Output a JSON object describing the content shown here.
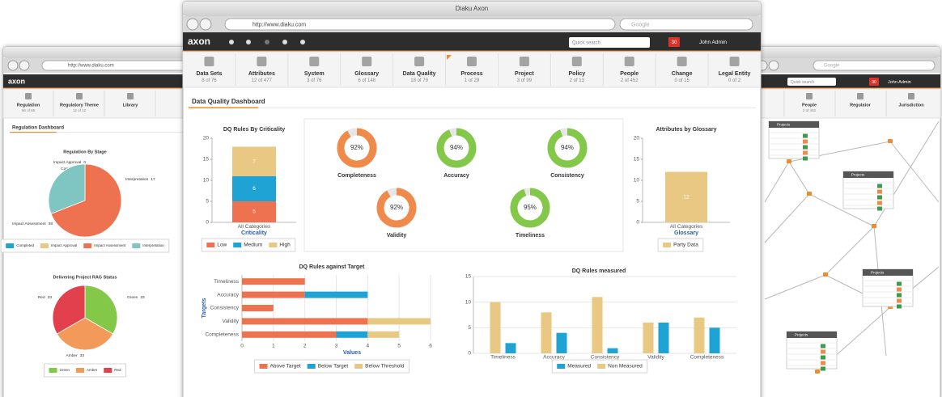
{
  "main_window": {
    "title": "Diaku Axon",
    "url": "http://www.diaku.com",
    "search": "Google",
    "logo": "axon",
    "quick_search": "Quick search",
    "notifications": "30",
    "user": "John Admin"
  },
  "tabs": [
    {
      "label": "Data Sets",
      "count": "8 of 76"
    },
    {
      "label": "Attributes",
      "count": "12 of 477"
    },
    {
      "label": "System",
      "count": "3 of 76"
    },
    {
      "label": "Glossary",
      "count": "6 of 148"
    },
    {
      "label": "Data Quality",
      "count": "18 of 79"
    },
    {
      "label": "Process",
      "count": "1 of 29"
    },
    {
      "label": "Project",
      "count": "3 of 99"
    },
    {
      "label": "Policy",
      "count": "2 of 13"
    },
    {
      "label": "People",
      "count": "2 of 452"
    },
    {
      "label": "Change",
      "count": "0 of 15"
    },
    {
      "label": "Legal Entity",
      "count": "0 of 2"
    }
  ],
  "dashboard_title": "Data Quality Dashboard",
  "chart_data": [
    {
      "type": "bar",
      "stacked": true,
      "title": "DQ Rules By Criticality",
      "categories": [
        "All Categories"
      ],
      "xlabel": "Criticality",
      "series": [
        {
          "name": "Low",
          "color": "#ee7150",
          "values": [
            5
          ]
        },
        {
          "name": "Medium",
          "color": "#1fa3d4",
          "values": [
            6
          ]
        },
        {
          "name": "High",
          "color": "#e8c882",
          "values": [
            7
          ]
        }
      ],
      "ylim": [
        0,
        20
      ],
      "yticks": [
        0,
        5,
        10,
        15,
        20
      ],
      "grid": false
    },
    {
      "type": "donut",
      "categories": [
        "Completeness",
        "Accuracy",
        "Consistency",
        "Validity",
        "Timeliness"
      ],
      "values": [
        92,
        94,
        94,
        92,
        95
      ],
      "value_labels": [
        "92%",
        "94%",
        "94%",
        "92%",
        "95%"
      ],
      "colors": [
        "#f08a4b",
        "#84c84a",
        "#84c84a",
        "#f08a4b",
        "#84c84a"
      ],
      "ylim": [
        0,
        100
      ]
    },
    {
      "type": "bar",
      "stacked": true,
      "title": "Attributes by Glossary",
      "categories": [
        "All Categories"
      ],
      "xlabel": "Glossary",
      "series": [
        {
          "name": "Party Data",
          "color": "#e8c882",
          "values": [
            12
          ]
        }
      ],
      "ylim": [
        0,
        20
      ],
      "yticks": [
        0,
        5,
        10,
        15,
        20
      ],
      "grid": false
    },
    {
      "type": "hbar",
      "stacked": true,
      "title": "DQ Rules against Target",
      "categories": [
        "Timeliness",
        "Accuracy",
        "Consistency",
        "Validity",
        "Completeness"
      ],
      "xlabel": "Values",
      "ylabel": "Targets",
      "series": [
        {
          "name": "Above Target",
          "color": "#ee7150",
          "values": [
            2,
            2,
            1,
            4,
            3
          ]
        },
        {
          "name": "Below Target",
          "color": "#1fa3d4",
          "values": [
            0,
            2,
            0,
            0,
            1
          ]
        },
        {
          "name": "Below Threshold",
          "color": "#e8c882",
          "values": [
            0,
            0,
            0,
            2,
            1
          ]
        }
      ],
      "xlim": [
        0,
        6
      ],
      "xticks": [
        0,
        1,
        2,
        3,
        4,
        5,
        6
      ],
      "grid": true
    },
    {
      "type": "grouped_bar",
      "title": "DQ Rules measured",
      "categories": [
        "Timeliness",
        "Accuracy",
        "Consistency",
        "Validity",
        "Completeness"
      ],
      "series": [
        {
          "name": "Measured",
          "color": "#1fa3d4",
          "values": [
            2,
            4,
            1,
            6,
            5
          ]
        },
        {
          "name": "Non Measured",
          "color": "#e8c882",
          "values": [
            10,
            8,
            11,
            6,
            7
          ]
        }
      ],
      "ylim": [
        0,
        15
      ],
      "yticks": [
        0,
        5,
        10,
        15
      ],
      "grid": true
    },
    {
      "type": "pie",
      "title": "Regulation By Stage",
      "categories": [
        "Completed",
        "Impact Approval",
        "Impact Assessment",
        "Interpretation"
      ],
      "values": [
        0,
        0,
        38,
        17
      ],
      "colors": [
        "#1fa3d4",
        "#e8c882",
        "#ee7150",
        "#7fc6c2"
      ]
    },
    {
      "type": "pie",
      "title": "Delivering Project RAG Status",
      "categories": [
        "Green",
        "Amber",
        "Red"
      ],
      "values": [
        33,
        33,
        33
      ],
      "colors": [
        "#84c84a",
        "#f39a5a",
        "#e2404c"
      ]
    }
  ],
  "left_window": {
    "url": "http://www.diaku.com",
    "logo": "axon",
    "dashboard_title": "Regulation Dashboard",
    "tabs": [
      {
        "label": "Regulation",
        "count": "66 of 66"
      },
      {
        "label": "Regulatory Theme",
        "count": "12 of 12"
      },
      {
        "label": "Library"
      }
    ]
  },
  "right_window": {
    "search": "Google",
    "quick_search": "Quick search",
    "notifications": "30",
    "user": "John Admin",
    "tabs": [
      {
        "label": "People",
        "count": "2 of 452"
      },
      {
        "label": "Regulator"
      },
      {
        "label": "Jurisdiction"
      }
    ],
    "tables": [
      "Projects",
      "Projects",
      "Projects",
      "Projects"
    ]
  }
}
